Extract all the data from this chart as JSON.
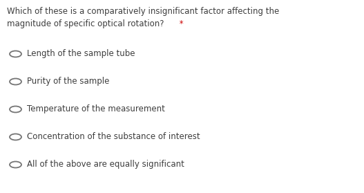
{
  "question_line1": "Which of these is a comparatively insignificant factor affecting the",
  "question_line2": "magnitude of specific optical rotation?",
  "asterisk": "*",
  "options": [
    "Length of the sample tube",
    "Purity of the sample",
    "Temperature of the measurement",
    "Concentration of the substance of interest",
    "All of the above are equally significant"
  ],
  "background_color": "#ffffff",
  "text_color": "#3d3d3d",
  "asterisk_color": "#cc0000",
  "circle_edgecolor": "#757575",
  "question_fontsize": 8.5,
  "option_fontsize": 8.5,
  "fig_width": 5.27,
  "fig_height": 2.79,
  "dpi": 100
}
